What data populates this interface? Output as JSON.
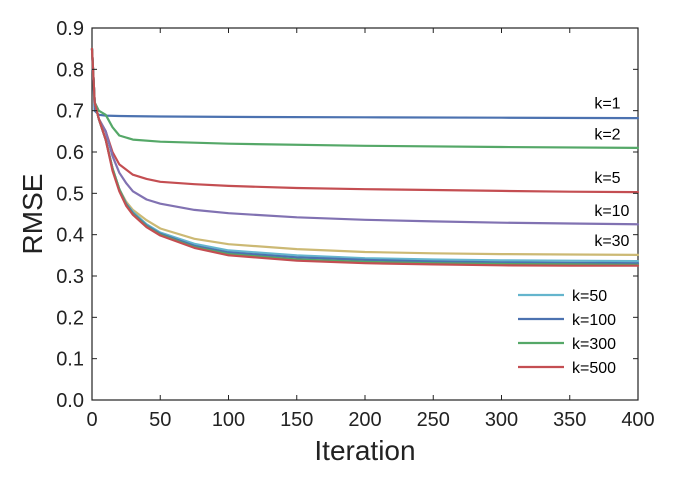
{
  "chart_data": {
    "type": "line",
    "title": "",
    "xlabel": "Iteration",
    "ylabel": "RMSE",
    "xlim": [
      0,
      400
    ],
    "ylim": [
      0.0,
      0.9
    ],
    "xticks": [
      0,
      50,
      100,
      150,
      200,
      250,
      300,
      350,
      400
    ],
    "xtick_labels": [
      "0",
      "50",
      "100",
      "150",
      "200",
      "250",
      "300",
      "350",
      "400"
    ],
    "yticks": [
      0.0,
      0.1,
      0.2,
      0.3,
      0.4,
      0.5,
      0.6,
      0.7,
      0.8,
      0.9
    ],
    "ytick_labels": [
      "0.0",
      "0.1",
      "0.2",
      "0.3",
      "0.4",
      "0.5",
      "0.6",
      "0.7",
      "0.8",
      "0.9"
    ],
    "grid": false,
    "legend_position": "lower-right",
    "series": [
      {
        "name": "k=1",
        "color": "#4c72b0",
        "in_legend": false,
        "x": [
          0,
          2,
          5,
          10,
          20,
          50,
          100,
          200,
          300,
          400
        ],
        "y": [
          0.85,
          0.7,
          0.69,
          0.688,
          0.687,
          0.686,
          0.685,
          0.684,
          0.683,
          0.682
        ]
      },
      {
        "name": "k=2",
        "color": "#55a868",
        "in_legend": false,
        "x": [
          0,
          2,
          5,
          10,
          15,
          20,
          30,
          50,
          100,
          200,
          300,
          400
        ],
        "y": [
          0.85,
          0.72,
          0.7,
          0.69,
          0.66,
          0.64,
          0.63,
          0.625,
          0.62,
          0.615,
          0.612,
          0.61
        ]
      },
      {
        "name": "k=5",
        "color": "#c44e52",
        "in_legend": false,
        "x": [
          0,
          2,
          5,
          10,
          15,
          20,
          30,
          40,
          50,
          75,
          100,
          150,
          200,
          250,
          300,
          350,
          400
        ],
        "y": [
          0.85,
          0.72,
          0.68,
          0.65,
          0.6,
          0.57,
          0.545,
          0.535,
          0.528,
          0.522,
          0.518,
          0.513,
          0.51,
          0.508,
          0.506,
          0.504,
          0.503
        ]
      },
      {
        "name": "k=10",
        "color": "#8172b2",
        "in_legend": false,
        "x": [
          0,
          2,
          5,
          10,
          15,
          20,
          25,
          30,
          40,
          50,
          75,
          100,
          150,
          200,
          250,
          300,
          350,
          400
        ],
        "y": [
          0.85,
          0.72,
          0.68,
          0.65,
          0.59,
          0.55,
          0.525,
          0.505,
          0.485,
          0.475,
          0.46,
          0.452,
          0.442,
          0.436,
          0.432,
          0.429,
          0.427,
          0.425
        ]
      },
      {
        "name": "k=30",
        "color": "#ccb974",
        "in_legend": false,
        "x": [
          0,
          2,
          5,
          10,
          15,
          20,
          25,
          30,
          40,
          50,
          75,
          100,
          150,
          200,
          250,
          300,
          350,
          400
        ],
        "y": [
          0.85,
          0.72,
          0.68,
          0.63,
          0.56,
          0.51,
          0.48,
          0.46,
          0.435,
          0.415,
          0.39,
          0.377,
          0.365,
          0.358,
          0.355,
          0.353,
          0.352,
          0.351
        ]
      },
      {
        "name": "k=50",
        "color": "#64b5cd",
        "in_legend": true,
        "x": [
          0,
          2,
          5,
          10,
          15,
          20,
          25,
          30,
          40,
          50,
          75,
          100,
          150,
          200,
          250,
          300,
          350,
          400
        ],
        "y": [
          0.85,
          0.72,
          0.68,
          0.63,
          0.56,
          0.51,
          0.475,
          0.455,
          0.425,
          0.405,
          0.378,
          0.362,
          0.35,
          0.343,
          0.34,
          0.338,
          0.337,
          0.336
        ]
      },
      {
        "name": "k=100",
        "color": "#4c72b0",
        "in_legend": true,
        "x": [
          0,
          2,
          5,
          10,
          15,
          20,
          25,
          30,
          40,
          50,
          75,
          100,
          150,
          200,
          250,
          300,
          350,
          400
        ],
        "y": [
          0.85,
          0.72,
          0.68,
          0.63,
          0.56,
          0.51,
          0.475,
          0.452,
          0.422,
          0.402,
          0.373,
          0.357,
          0.345,
          0.339,
          0.335,
          0.333,
          0.332,
          0.331
        ]
      },
      {
        "name": "k=300",
        "color": "#55a868",
        "in_legend": true,
        "x": [
          0,
          2,
          5,
          10,
          15,
          20,
          25,
          30,
          40,
          50,
          75,
          100,
          150,
          200,
          250,
          300,
          350,
          400
        ],
        "y": [
          0.85,
          0.72,
          0.68,
          0.63,
          0.56,
          0.51,
          0.472,
          0.45,
          0.42,
          0.4,
          0.37,
          0.353,
          0.34,
          0.334,
          0.331,
          0.329,
          0.328,
          0.327
        ]
      },
      {
        "name": "k=500",
        "color": "#c44e52",
        "in_legend": true,
        "x": [
          0,
          2,
          5,
          10,
          15,
          20,
          25,
          30,
          40,
          50,
          75,
          100,
          150,
          200,
          250,
          300,
          350,
          400
        ],
        "y": [
          0.85,
          0.72,
          0.68,
          0.63,
          0.555,
          0.505,
          0.47,
          0.448,
          0.418,
          0.398,
          0.368,
          0.35,
          0.337,
          0.331,
          0.328,
          0.326,
          0.325,
          0.325
        ]
      }
    ],
    "annotations": [
      {
        "text": "k=1",
        "x": 368,
        "y": 0.705,
        "color": "#000000"
      },
      {
        "text": "k=2",
        "x": 368,
        "y": 0.63,
        "color": "#000000"
      },
      {
        "text": "k=5",
        "x": 368,
        "y": 0.525,
        "color": "#000000"
      },
      {
        "text": "k=10",
        "x": 368,
        "y": 0.445,
        "color": "#000000"
      },
      {
        "text": "k=30",
        "x": 368,
        "y": 0.372,
        "color": "#000000"
      }
    ]
  }
}
